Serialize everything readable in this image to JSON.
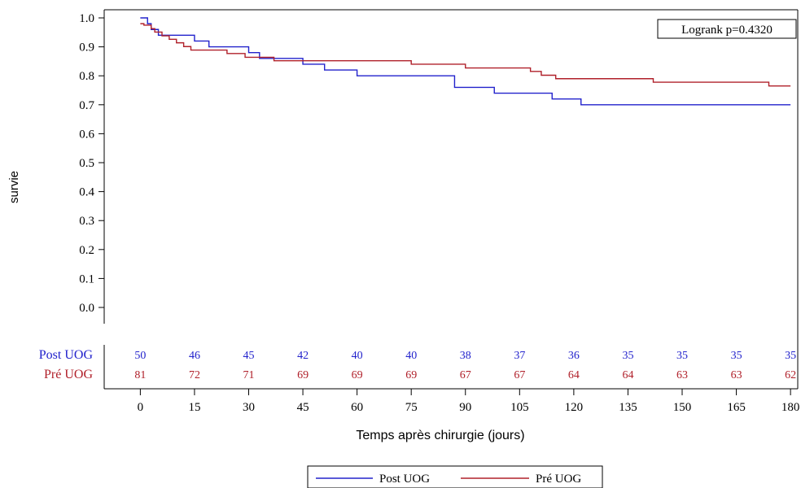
{
  "chart_data": {
    "type": "line",
    "step": true,
    "xlabel": "Temps après chirurgie (jours)",
    "ylabel": "survie",
    "xlim": [
      -10,
      182
    ],
    "ylim": [
      0,
      1
    ],
    "x_ticks": [
      0,
      15,
      30,
      45,
      60,
      75,
      90,
      105,
      120,
      135,
      150,
      165,
      180
    ],
    "x_tick_labels": [
      "0",
      "15",
      "30",
      "45",
      "60",
      "75",
      "90",
      "105",
      "120",
      "135",
      "150",
      "165",
      "180"
    ],
    "y_ticks": [
      0,
      0.1,
      0.2,
      0.3,
      0.4,
      0.5,
      0.6,
      0.7,
      0.8,
      0.9,
      1.0
    ],
    "y_tick_labels": [
      "0.0",
      "0.1",
      "0.2",
      "0.3",
      "0.4",
      "0.5",
      "0.6",
      "0.7",
      "0.8",
      "0.9",
      "1.0"
    ],
    "grid": false,
    "annotation": "Logrank p=0.4320",
    "legend_position": "bottom-center",
    "series": [
      {
        "name": "Post UOG",
        "color": "#2222cc",
        "x": [
          0,
          2,
          3,
          5,
          15,
          19,
          30,
          33,
          45,
          51,
          60,
          87,
          98,
          114,
          122,
          180
        ],
        "y": [
          1.0,
          0.98,
          0.96,
          0.94,
          0.92,
          0.9,
          0.88,
          0.86,
          0.84,
          0.82,
          0.8,
          0.76,
          0.74,
          0.72,
          0.7,
          0.7
        ]
      },
      {
        "name": "Pré UOG",
        "color": "#b0202a",
        "x": [
          0,
          1,
          3,
          4,
          6,
          8,
          10,
          12,
          14,
          24,
          29,
          37,
          43,
          75,
          90,
          108,
          111,
          115,
          135,
          142,
          174,
          180
        ],
        "y": [
          0.98,
          0.975,
          0.963,
          0.951,
          0.938,
          0.926,
          0.914,
          0.901,
          0.889,
          0.877,
          0.864,
          0.852,
          0.852,
          0.84,
          0.827,
          0.815,
          0.802,
          0.79,
          0.79,
          0.778,
          0.765,
          0.765
        ]
      }
    ],
    "at_risk": {
      "x": [
        0,
        15,
        30,
        45,
        60,
        75,
        90,
        105,
        120,
        135,
        150,
        165,
        180
      ],
      "rows": [
        {
          "label": "Post UOG",
          "color": "#2222cc",
          "values": [
            "50",
            "46",
            "45",
            "42",
            "40",
            "40",
            "38",
            "37",
            "36",
            "35",
            "35",
            "35",
            "35"
          ]
        },
        {
          "label": "Pré UOG",
          "color": "#b0202a",
          "values": [
            "81",
            "72",
            "71",
            "69",
            "69",
            "69",
            "67",
            "67",
            "64",
            "64",
            "63",
            "63",
            "62"
          ]
        }
      ]
    }
  }
}
